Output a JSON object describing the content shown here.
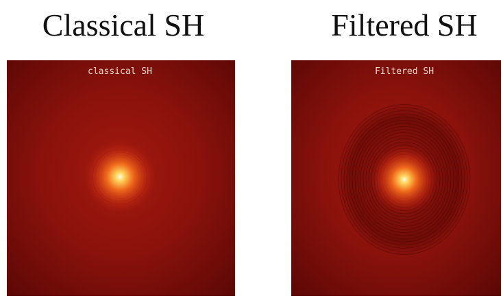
{
  "panels": [
    {
      "title": "Classical SH",
      "image_label": "classical SH"
    },
    {
      "title": "Filtered SH",
      "image_label": "Filtered SH"
    }
  ]
}
